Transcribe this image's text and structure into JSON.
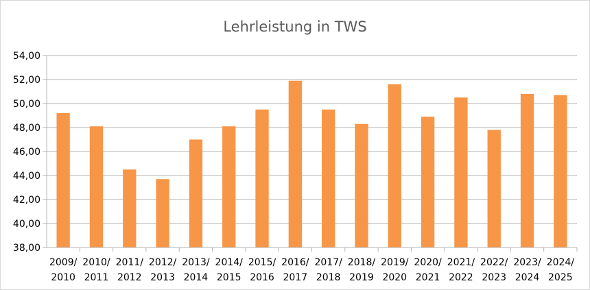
{
  "chart_data": {
    "type": "bar",
    "title": "Lehrleistung in TWS",
    "xlabel": "",
    "ylabel": "",
    "categories": [
      [
        "2009/",
        "2010"
      ],
      [
        "2010/",
        "2011"
      ],
      [
        "2011/",
        "2012"
      ],
      [
        "2012/",
        "2013"
      ],
      [
        "2013/",
        "2014"
      ],
      [
        "2014/",
        "2015"
      ],
      [
        "2015/",
        "2016"
      ],
      [
        "2016/",
        "2017"
      ],
      [
        "2017/",
        "2018"
      ],
      [
        "2018/",
        "2019"
      ],
      [
        "2019/",
        "2020"
      ],
      [
        "2020/",
        "2021"
      ],
      [
        "2021/",
        "2022"
      ],
      [
        "2022/",
        "2023"
      ],
      [
        "2023/",
        "2024"
      ],
      [
        "2024/",
        "2025"
      ]
    ],
    "values": [
      49.2,
      48.1,
      44.5,
      43.7,
      47.0,
      48.1,
      49.5,
      51.9,
      49.5,
      48.3,
      51.6,
      48.9,
      50.5,
      47.8,
      50.8,
      50.7
    ],
    "ylim": [
      38,
      54
    ],
    "yticks": [
      "38,00",
      "40,00",
      "42,00",
      "44,00",
      "46,00",
      "48,00",
      "50,00",
      "52,00",
      "54,00"
    ],
    "grid": true,
    "legend": "none",
    "bar_color": "#f79646"
  }
}
